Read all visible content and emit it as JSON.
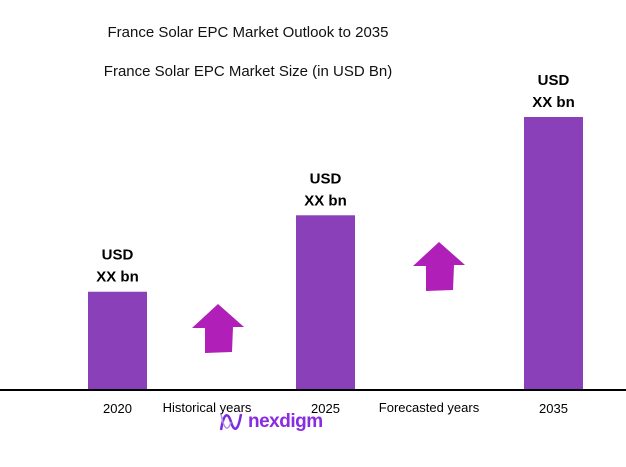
{
  "chart_data": {
    "type": "bar",
    "title": "France Solar EPC Market Outlook to 2035",
    "subtitle": "France Solar EPC Market Size (in USD Bn)",
    "categories": [
      "2020",
      "2025",
      "2035"
    ],
    "values": [
      0.36,
      0.64,
      1.0
    ],
    "data_labels": [
      [
        "USD",
        "XX bn"
      ],
      [
        "USD",
        "XX bn"
      ],
      [
        "USD",
        "XX bn"
      ]
    ],
    "period_labels": [
      "Historical years",
      "Forecasted years"
    ],
    "bar_color": "#8a40b8",
    "arrow_color": "#b01fb8",
    "grid": false
  },
  "brand": {
    "logo_text": "nexdigm"
  }
}
